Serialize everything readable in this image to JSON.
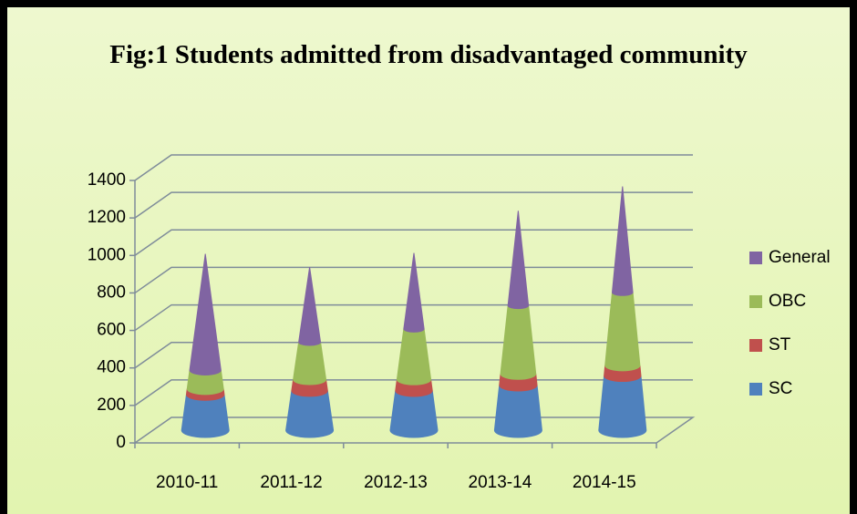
{
  "chart_data": {
    "type": "cone3d",
    "title": "Fig:1 Students admitted from disadvantaged community",
    "categories": [
      "2010-11",
      "2011-12",
      "2012-13",
      "2013-14",
      "2014-15"
    ],
    "series": [
      {
        "name": "SC",
        "color": "#4f81bd",
        "values": [
          190,
          210,
          210,
          240,
          290
        ]
      },
      {
        "name": "ST",
        "color": "#c0504d",
        "values": [
          30,
          60,
          60,
          60,
          55
        ]
      },
      {
        "name": "OBC",
        "color": "#9bbb59",
        "values": [
          100,
          200,
          270,
          365,
          390
        ]
      },
      {
        "name": "General",
        "color": "#8064a2",
        "values": [
          620,
          400,
          405,
          505,
          565
        ]
      }
    ],
    "ylim": [
      0,
      1400
    ],
    "yticks": [
      0,
      200,
      400,
      600,
      800,
      1000,
      1200,
      1400
    ],
    "grid": true,
    "legend": "right"
  }
}
